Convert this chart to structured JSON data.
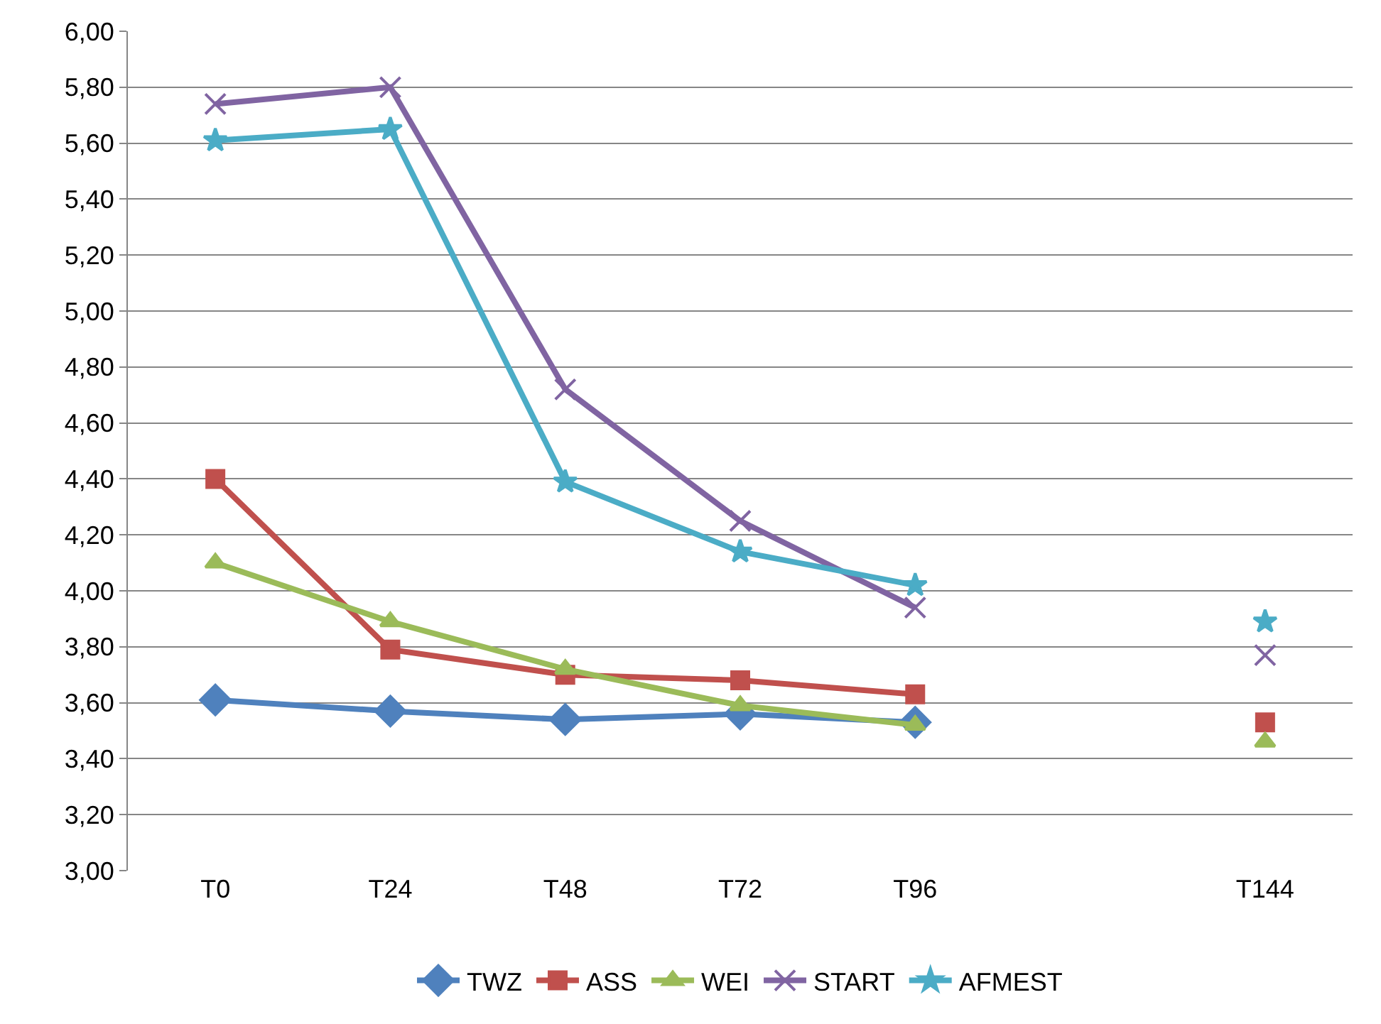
{
  "chart_data": {
    "type": "line",
    "categories": [
      "T0",
      "T24",
      "T48",
      "T72",
      "T96",
      null,
      "T144"
    ],
    "series": [
      {
        "name": "TWZ",
        "color": "#4f81bd",
        "marker": "diamond",
        "values": [
          3.61,
          3.57,
          3.54,
          3.56,
          3.53,
          null,
          null
        ]
      },
      {
        "name": "ASS",
        "color": "#c0504d",
        "marker": "square",
        "values": [
          4.4,
          3.79,
          3.7,
          3.68,
          3.63,
          null,
          3.53
        ]
      },
      {
        "name": "WEI",
        "color": "#9bbb59",
        "marker": "triangle",
        "values": [
          4.1,
          3.89,
          3.72,
          3.59,
          3.52,
          null,
          3.46
        ]
      },
      {
        "name": "START",
        "color": "#8064a2",
        "marker": "cross",
        "values": [
          5.74,
          5.8,
          4.72,
          4.25,
          3.94,
          null,
          3.77
        ]
      },
      {
        "name": "AFMEST",
        "color": "#4bacc6",
        "marker": "star",
        "values": [
          5.61,
          5.65,
          4.39,
          4.14,
          4.02,
          null,
          3.89
        ]
      }
    ],
    "ylim": [
      3.0,
      6.0
    ],
    "yticks": [
      {
        "value": 3.0,
        "label": "3,00"
      },
      {
        "value": 3.2,
        "label": "3,20"
      },
      {
        "value": 3.4,
        "label": "3,40"
      },
      {
        "value": 3.6,
        "label": "3,60"
      },
      {
        "value": 3.8,
        "label": "3,80"
      },
      {
        "value": 4.0,
        "label": "4,00"
      },
      {
        "value": 4.2,
        "label": "4,20"
      },
      {
        "value": 4.4,
        "label": "4,40"
      },
      {
        "value": 4.6,
        "label": "4,60"
      },
      {
        "value": 4.8,
        "label": "4,80"
      },
      {
        "value": 5.0,
        "label": "5,00"
      },
      {
        "value": 5.2,
        "label": "5,20"
      },
      {
        "value": 5.4,
        "label": "5,40"
      },
      {
        "value": 5.6,
        "label": "5,60"
      },
      {
        "value": 5.8,
        "label": "5,80"
      },
      {
        "value": 6.0,
        "label": "6,00"
      }
    ],
    "grid": "y",
    "legend": "bottom",
    "line_style": "solid"
  }
}
